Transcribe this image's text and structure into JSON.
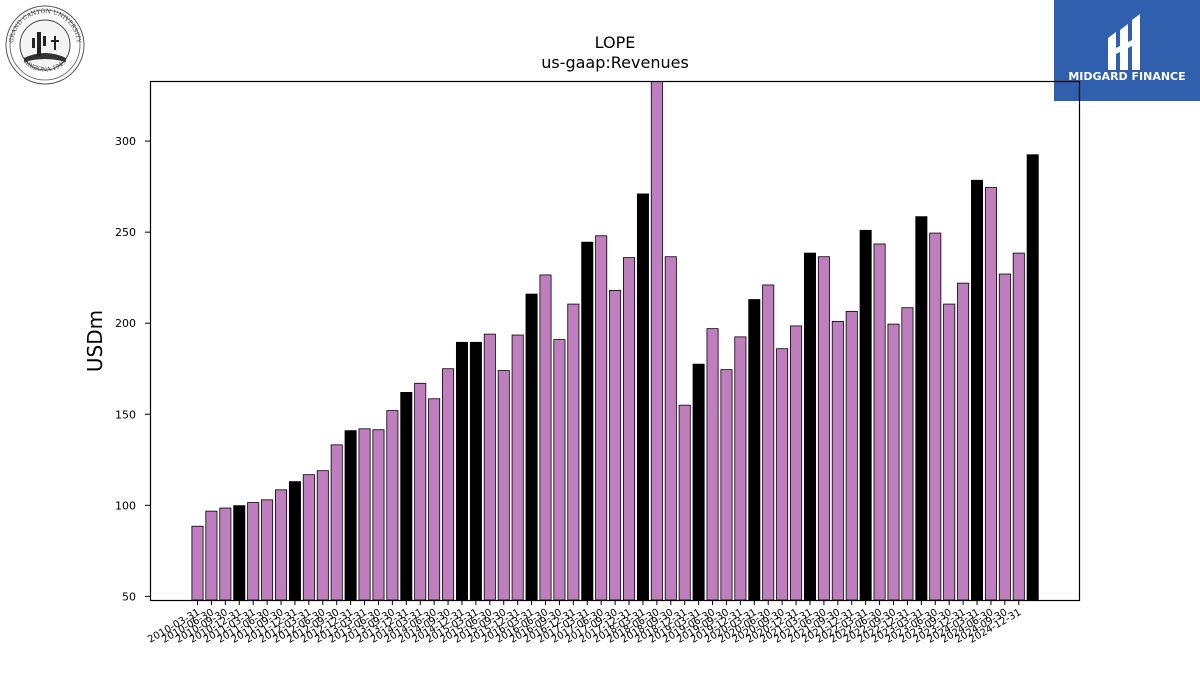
{
  "logos": {
    "university_top": "GRAND CANYON UNIVERSITY",
    "university_bottom": "ARIZONA 1949",
    "brand_name": "MIDGARD FINANCE",
    "brand_color": "#2f5fad"
  },
  "chart_data": {
    "type": "bar",
    "title": "LOPE",
    "subtitle": "us-gaap:Revenues",
    "ylabel": "USDm",
    "xlabel": "",
    "ylim": [
      48,
      333
    ],
    "yticks": [
      50,
      100,
      150,
      200,
      250,
      300
    ],
    "grid": false,
    "colors": {
      "quarter": "#bf7fbf",
      "year_end": "#000000",
      "edge": "#000000"
    },
    "categories": [
      "2010-03-31",
      "2010-06-30",
      "2010-09-30",
      "2010-12-31",
      "2011-03-31",
      "2011-06-30",
      "2011-09-30",
      "2011-12-31",
      "2012-03-31",
      "2012-06-30",
      "2012-09-30",
      "2012-12-31",
      "2013-03-31",
      "2013-06-30",
      "2013-09-30",
      "2013-12-31",
      "2014-03-31",
      "2014-06-30",
      "2014-09-30",
      "2014-12-31",
      "2015-03-31",
      "2015-06-30",
      "2015-09-30",
      "2015-12-31",
      "2016-03-31",
      "2016-06-30",
      "2016-09-30",
      "2016-12-31",
      "2017-03-31",
      "2017-06-30",
      "2017-09-30",
      "2017-12-31",
      "2018-03-31",
      "2018-06-30",
      "2018-09-30",
      "2018-12-31",
      "2019-03-31",
      "2019-06-30",
      "2019-09-30",
      "2019-12-31",
      "2020-03-31",
      "2020-06-30",
      "2020-09-30",
      "2020-12-31",
      "2021-03-31",
      "2021-06-30",
      "2021-09-30",
      "2021-12-31",
      "2022-03-31",
      "2022-06-30",
      "2022-09-30",
      "2022-12-31",
      "2023-03-31",
      "2023-06-30",
      "2023-09-30",
      "2023-12-31",
      "2024-03-31",
      "2024-06-30",
      "2024-09-30",
      "2024-12-31"
    ],
    "values": [
      88.5,
      96.8,
      98.5,
      99.8,
      101.5,
      103.0,
      108.5,
      113.0,
      116.8,
      119.0,
      133.2,
      141.0,
      142.0,
      141.5,
      152.0,
      162.0,
      167.0,
      158.5,
      175.0,
      189.5,
      189.5,
      194.0,
      174.0,
      193.5,
      216.0,
      226.5,
      191.0,
      210.5,
      244.5,
      248.0,
      218.0,
      236.0,
      271.0,
      335.0,
      236.5,
      155.0,
      177.5,
      197.0,
      174.5,
      192.5,
      213.0,
      221.0,
      186.0,
      198.5,
      238.5,
      236.5,
      201.0,
      206.5,
      251.0,
      243.5,
      199.5,
      208.5,
      258.5,
      249.5,
      210.5,
      222.0,
      278.5,
      274.5,
      227.0,
      238.5
    ],
    "highlight": [
      false,
      false,
      false,
      true,
      false,
      false,
      false,
      true,
      false,
      false,
      false,
      true,
      false,
      false,
      false,
      true,
      false,
      false,
      false,
      true,
      true,
      false,
      false,
      false,
      true,
      false,
      false,
      false,
      true,
      false,
      false,
      false,
      true,
      false,
      false,
      false,
      true,
      false,
      false,
      false,
      true,
      false,
      false,
      false,
      true,
      false,
      false,
      false,
      true,
      false,
      false,
      false,
      true,
      false,
      false,
      false,
      true,
      false,
      false,
      false
    ],
    "extra_bar": {
      "category": "2024-12-31",
      "value": 292.5,
      "highlight": true
    }
  }
}
